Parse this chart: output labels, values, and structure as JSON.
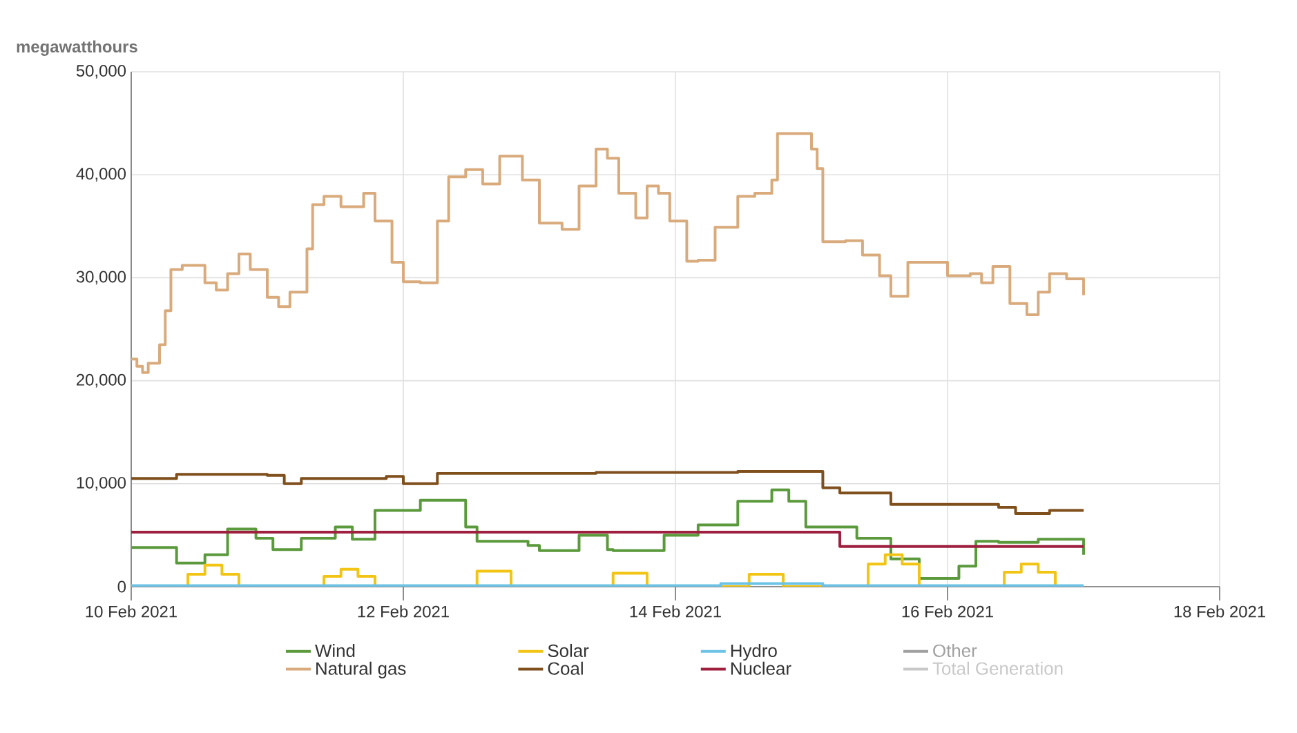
{
  "chart_data": {
    "type": "step",
    "ylabel": "megawatthours",
    "xlim": [
      "2021-02-10T00:00",
      "2021-02-18T00:00"
    ],
    "xticks": [
      {
        "value": "2021-02-10T00:00",
        "label": "10 Feb 2021"
      },
      {
        "value": "2021-02-12T00:00",
        "label": "12 Feb 2021"
      },
      {
        "value": "2021-02-14T00:00",
        "label": "14 Feb 2021"
      },
      {
        "value": "2021-02-16T00:00",
        "label": "16 Feb 2021"
      },
      {
        "value": "2021-02-18T00:00",
        "label": "18 Feb 2021"
      }
    ],
    "ylim": [
      0,
      50000
    ],
    "yticks": [
      0,
      {
        "value": 10000,
        "label": "10,000"
      },
      {
        "value": 20000,
        "label": "20,000"
      },
      {
        "value": 30000,
        "label": "30,000"
      },
      {
        "value": 40000,
        "label": "40,000"
      },
      {
        "value": 50000,
        "label": "50,000"
      }
    ],
    "grid": true,
    "legend": "bottom",
    "marker": "none",
    "line_style": "solid",
    "series": [
      {
        "name": "Wind",
        "color": "#5b9a3c",
        "x": [
          "2021-02-10T00:00",
          "2021-02-10T08:00",
          "2021-02-10T13:00",
          "2021-02-10T17:00",
          "2021-02-10T22:00",
          "2021-02-11T01:00",
          "2021-02-11T06:00",
          "2021-02-11T12:00",
          "2021-02-11T15:00",
          "2021-02-11T19:00",
          "2021-02-12T03:00",
          "2021-02-12T11:00",
          "2021-02-12T13:00",
          "2021-02-12T22:00",
          "2021-02-13T00:00",
          "2021-02-13T07:00",
          "2021-02-13T12:00",
          "2021-02-13T13:00",
          "2021-02-13T22:00",
          "2021-02-14T04:00",
          "2021-02-14T11:00",
          "2021-02-14T17:00",
          "2021-02-14T20:00",
          "2021-02-14T23:00",
          "2021-02-15T08:00",
          "2021-02-15T14:00",
          "2021-02-15T19:00",
          "2021-02-16T02:00",
          "2021-02-16T05:00",
          "2021-02-16T09:00",
          "2021-02-16T16:00",
          "2021-02-17T00:00"
        ],
        "values": [
          3800,
          2300,
          3100,
          5600,
          4700,
          3600,
          4700,
          5800,
          4600,
          7400,
          8400,
          5800,
          4400,
          4000,
          3500,
          5000,
          3600,
          3500,
          5000,
          6000,
          8300,
          9400,
          8300,
          5800,
          4700,
          2700,
          800,
          2000,
          4400,
          4300,
          4600,
          3100
        ]
      },
      {
        "name": "Solar",
        "color": "#f2c414",
        "x": [
          "2021-02-10T00:00",
          "2021-02-10T07:00",
          "2021-02-10T10:00",
          "2021-02-10T13:00",
          "2021-02-10T16:00",
          "2021-02-10T19:00",
          "2021-02-11T07:00",
          "2021-02-11T10:00",
          "2021-02-11T13:00",
          "2021-02-11T16:00",
          "2021-02-11T19:00",
          "2021-02-12T07:00",
          "2021-02-12T13:00",
          "2021-02-12T19:00",
          "2021-02-13T07:00",
          "2021-02-13T13:00",
          "2021-02-13T19:00",
          "2021-02-14T07:00",
          "2021-02-14T13:00",
          "2021-02-14T19:00",
          "2021-02-15T07:00",
          "2021-02-15T10:00",
          "2021-02-15T13:00",
          "2021-02-15T16:00",
          "2021-02-15T19:00",
          "2021-02-16T07:00",
          "2021-02-16T10:00",
          "2021-02-16T13:00",
          "2021-02-16T16:00",
          "2021-02-16T19:00",
          "2021-02-17T00:00"
        ],
        "values": [
          0,
          0,
          1200,
          2100,
          1200,
          0,
          0,
          1000,
          1700,
          1000,
          0,
          0,
          1500,
          0,
          0,
          1300,
          0,
          0,
          1200,
          0,
          0,
          2200,
          3100,
          2200,
          0,
          0,
          1400,
          2200,
          1400,
          0,
          0
        ]
      },
      {
        "name": "Hydro",
        "color": "#6cc3e6",
        "x": [
          "2021-02-10T00:00",
          "2021-02-14T08:00",
          "2021-02-15T02:00",
          "2021-02-17T00:00"
        ],
        "values": [
          100,
          300,
          100,
          100
        ]
      },
      {
        "name": "Other",
        "color": "#a0a0a0"
      },
      {
        "name": "Natural gas",
        "color": "#d9ab7c",
        "x": [
          "2021-02-10T00:00",
          "2021-02-10T01:00",
          "2021-02-10T02:00",
          "2021-02-10T03:00",
          "2021-02-10T05:00",
          "2021-02-10T06:00",
          "2021-02-10T07:00",
          "2021-02-10T09:00",
          "2021-02-10T13:00",
          "2021-02-10T15:00",
          "2021-02-10T17:00",
          "2021-02-10T19:00",
          "2021-02-10T21:00",
          "2021-02-11T00:00",
          "2021-02-11T02:00",
          "2021-02-11T04:00",
          "2021-02-11T07:00",
          "2021-02-11T08:00",
          "2021-02-11T10:00",
          "2021-02-11T13:00",
          "2021-02-11T17:00",
          "2021-02-11T19:00",
          "2021-02-11T22:00",
          "2021-02-12T00:00",
          "2021-02-12T03:00",
          "2021-02-12T06:00",
          "2021-02-12T08:00",
          "2021-02-12T11:00",
          "2021-02-12T14:00",
          "2021-02-12T17:00",
          "2021-02-12T21:00",
          "2021-02-13T00:00",
          "2021-02-13T04:00",
          "2021-02-13T07:00",
          "2021-02-13T10:00",
          "2021-02-13T12:00",
          "2021-02-13T14:00",
          "2021-02-13T17:00",
          "2021-02-13T19:00",
          "2021-02-13T21:00",
          "2021-02-13T23:00",
          "2021-02-14T02:00",
          "2021-02-14T04:00",
          "2021-02-14T07:00",
          "2021-02-14T11:00",
          "2021-02-14T14:00",
          "2021-02-14T17:00",
          "2021-02-14T18:00",
          "2021-02-14T21:00",
          "2021-02-15T00:00",
          "2021-02-15T01:00",
          "2021-02-15T02:00",
          "2021-02-15T06:00",
          "2021-02-15T09:00",
          "2021-02-15T12:00",
          "2021-02-15T14:00",
          "2021-02-15T17:00",
          "2021-02-15T21:00",
          "2021-02-16T00:00",
          "2021-02-16T04:00",
          "2021-02-16T06:00",
          "2021-02-16T08:00",
          "2021-02-16T11:00",
          "2021-02-16T14:00",
          "2021-02-16T16:00",
          "2021-02-16T18:00",
          "2021-02-16T21:00",
          "2021-02-17T00:00"
        ],
        "values": [
          22100,
          21400,
          20800,
          21700,
          23500,
          26800,
          30800,
          31200,
          29500,
          28800,
          30400,
          32300,
          30800,
          28100,
          27200,
          28600,
          32800,
          37100,
          37900,
          36900,
          38200,
          35500,
          31500,
          29600,
          29500,
          35500,
          39800,
          40500,
          39100,
          41800,
          39500,
          35300,
          34700,
          38900,
          42500,
          41600,
          38200,
          35800,
          38900,
          38200,
          35500,
          31600,
          31700,
          34900,
          37900,
          38200,
          39500,
          44000,
          44000,
          42500,
          40600,
          33500,
          33600,
          32200,
          30200,
          28200,
          31500,
          31500,
          30200,
          30400,
          29500,
          31100,
          27500,
          26400,
          28600,
          30400,
          29900,
          28300
        ]
      },
      {
        "name": "Coal",
        "color": "#7f4f1c",
        "x": [
          "2021-02-10T00:00",
          "2021-02-10T08:00",
          "2021-02-11T00:00",
          "2021-02-11T03:00",
          "2021-02-11T06:00",
          "2021-02-11T21:00",
          "2021-02-12T00:00",
          "2021-02-12T06:00",
          "2021-02-13T10:00",
          "2021-02-14T11:00",
          "2021-02-15T01:00",
          "2021-02-15T02:00",
          "2021-02-15T05:00",
          "2021-02-15T14:00",
          "2021-02-16T00:00",
          "2021-02-16T09:00",
          "2021-02-16T12:00",
          "2021-02-16T18:00",
          "2021-02-17T00:00"
        ],
        "values": [
          10500,
          10900,
          10800,
          10000,
          10500,
          10700,
          10000,
          11000,
          11100,
          11200,
          11200,
          9600,
          9100,
          8000,
          8000,
          7700,
          7100,
          7400,
          7400
        ]
      },
      {
        "name": "Nuclear",
        "color": "#9e1f3e",
        "x": [
          "2021-02-10T00:00",
          "2021-02-15T05:00",
          "2021-02-17T00:00"
        ],
        "values": [
          5300,
          3900,
          3900
        ]
      },
      {
        "name": "Total Generation",
        "color": "#c8c8c8"
      }
    ]
  }
}
